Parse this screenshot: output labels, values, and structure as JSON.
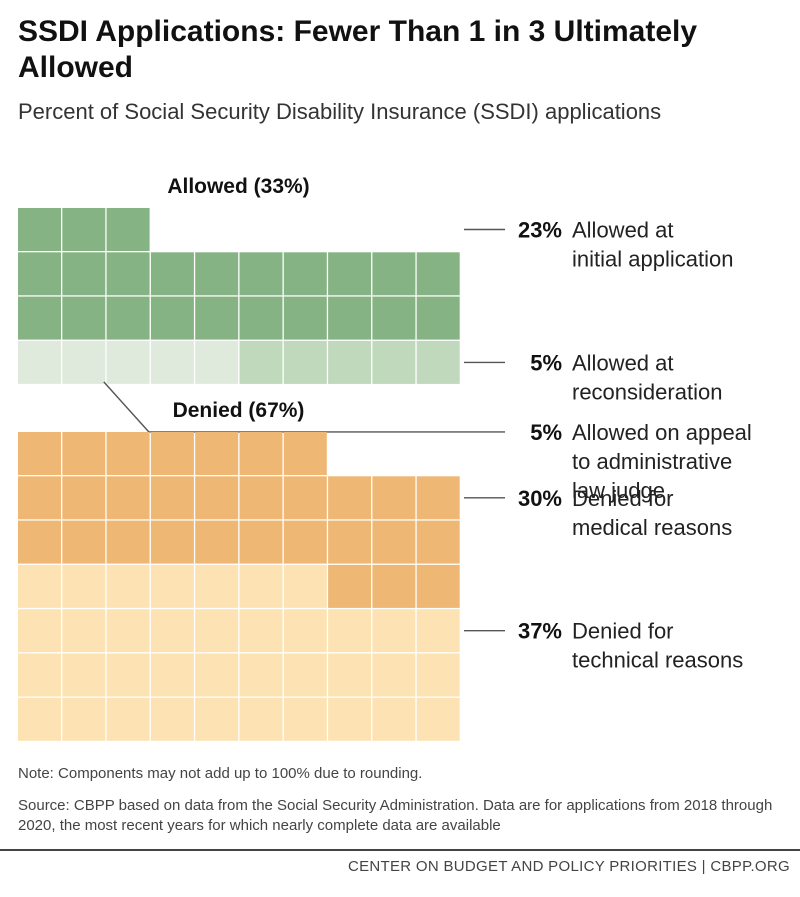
{
  "title": "SSDI Applications: Fewer Than 1 in 3 Ultimately Allowed",
  "subtitle": "Percent of Social Security Disability Insurance (SSDI) applications",
  "note": "Note: Components may not add up to 100% due to rounding.",
  "source": "Source: CBPP based on data from the Social Security Administration. Data are for applications from 2018 through 2020, the most recent years for which nearly complete data are available",
  "footer": "CENTER ON BUDGET AND POLICY PRIORITIES | CBPP.ORG",
  "chart_data": {
    "type": "waffle",
    "units_per_row": 10,
    "groups": [
      {
        "label": "Allowed (33%)",
        "categories": [
          {
            "pct_label": "23%",
            "label_lines": [
              "Allowed at",
              "initial application"
            ],
            "value": 23,
            "color": "#86b383"
          },
          {
            "pct_label": "5%",
            "label_lines": [
              "Allowed at",
              "reconsideration"
            ],
            "value": 5,
            "color": "#c0d8bc"
          },
          {
            "pct_label": "5%",
            "label_lines": [
              "Allowed on appeal",
              "to administrative",
              "law judge"
            ],
            "value": 5,
            "color": "#dfeadc"
          }
        ]
      },
      {
        "label": "Denied (67%)",
        "categories": [
          {
            "pct_label": "37%",
            "label_lines": [
              "Denied for",
              "technical reasons"
            ],
            "value": 37,
            "color": "#fde3b3"
          },
          {
            "pct_label": "30%",
            "label_lines": [
              "Denied for",
              "medical reasons"
            ],
            "value": 30,
            "color": "#efb774"
          }
        ]
      }
    ]
  }
}
